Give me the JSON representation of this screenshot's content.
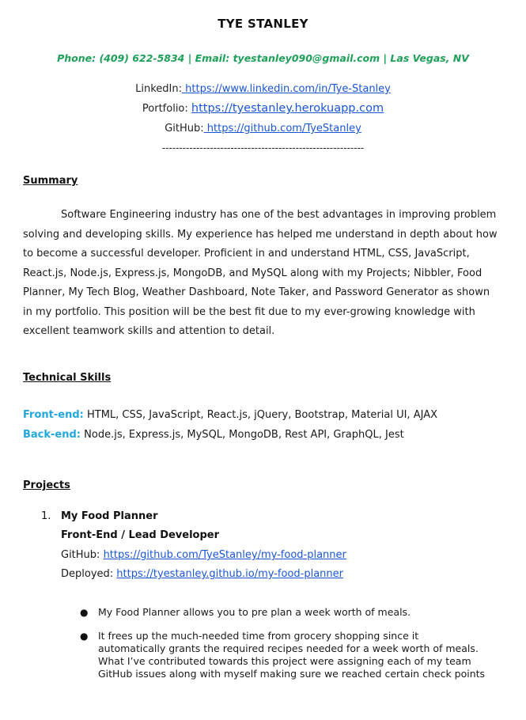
{
  "header": {
    "name": "TYE STANLEY",
    "contact": "Phone: (409) 622-5834 | Email: tyestanley090@gmail.com | Las Vegas, NV",
    "linkedin_label": "LinkedIn:",
    "linkedin_url": " https://www.linkedin.com/in/Tye-Stanley",
    "portfolio_label": "Portfolio:",
    "portfolio_url": "https://tyestanley.herokuapp.com",
    "github_label": "GitHub:",
    "github_url": " https://github.com/TyeStanley",
    "divider": "-----------------------------------------------------------"
  },
  "summary": {
    "heading": "Summary",
    "lines": [
      "Software Engineering industry has one of the best advantages in improving problem",
      "solving and developing skills. My experience has helped me understand in depth about how",
      "to become a successful developer. Proficient in and understand HTML, CSS, JavaScript,",
      "React.js, Node.js, Express.js, MongoDB, and MySQL along with my Projects; Nibbler, Food",
      "Planner, My Tech Blog, Weather Dashboard, Note Taker, and Password Generator as shown",
      "in my portfolio. This position will be the best fit due to my ever-growing knowledge with",
      "excellent teamwork skills and attention to detail."
    ]
  },
  "skills": {
    "heading": "Technical Skills",
    "frontend_label": "Front-end:",
    "frontend_value": " HTML, CSS, JavaScript, React.js, jQuery, Bootstrap, Material UI, AJAX",
    "backend_label": "Back-end:",
    "backend_value": " Node.js, Express.js, MySQL, MongoDB, Rest API, GraphQL, Jest"
  },
  "projects": {
    "heading": "Projects",
    "items": [
      {
        "number": "1.",
        "title": "My Food Planner",
        "role": "Front-End / Lead Developer",
        "github_label": "GitHub: ",
        "github_url": "https://github.com/TyeStanley/my-food-planner",
        "deployed_label": "Deployed: ",
        "deployed_url": "https://tyestanley.github.io/my-food-planner",
        "bullets": [
          {
            "lines": [
              "My Food Planner allows you to pre plan a week worth of meals."
            ]
          },
          {
            "lines": [
              "It frees up the much-needed time from grocery shopping since it",
              "automatically grants the required recipes needed for a week worth of meals.",
              "What I’ve contributed towards this project were assigning each of my team",
              "GitHub issues along with myself making sure we reached certain check points"
            ]
          }
        ]
      }
    ]
  }
}
